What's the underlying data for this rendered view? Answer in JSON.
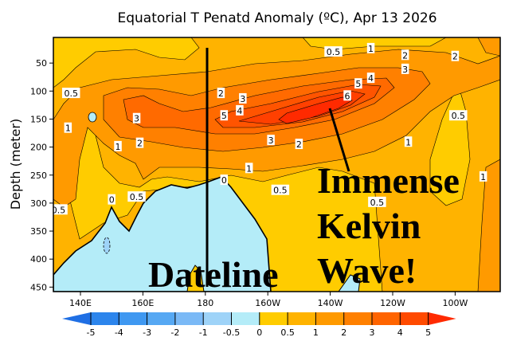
{
  "chart_data": {
    "type": "heatmap",
    "subtype": "filled-contour depth-longitude section",
    "title": "Equatorial T Penatd Anomaly (ºC), Apr 13 2026",
    "xlabel": "",
    "ylabel": "Depth (meter)",
    "xlim_deg_east": [
      130,
      280
    ],
    "ylim_depth": [
      460,
      5
    ],
    "x_ticks": [
      {
        "value": 140,
        "label": "140E"
      },
      {
        "value": 160,
        "label": "160E"
      },
      {
        "value": 180,
        "label": "180"
      },
      {
        "value": 200,
        "label": "160W"
      },
      {
        "value": 220,
        "label": "140W"
      },
      {
        "value": 240,
        "label": "120W"
      },
      {
        "value": 260,
        "label": "100W"
      }
    ],
    "y_ticks": [
      {
        "value": 50,
        "label": "50"
      },
      {
        "value": 100,
        "label": "100"
      },
      {
        "value": 150,
        "label": "150"
      },
      {
        "value": 200,
        "label": "200"
      },
      {
        "value": 250,
        "label": "250"
      },
      {
        "value": 300,
        "label": "300"
      },
      {
        "value": 350,
        "label": "350"
      },
      {
        "value": 400,
        "label": "400"
      },
      {
        "value": 450,
        "label": "450"
      }
    ],
    "colorbar": {
      "levels": [
        "-5",
        "-4",
        "-3",
        "-2",
        "-1",
        "-0.5",
        "0",
        "0.5",
        "1",
        "2",
        "3",
        "4",
        "5"
      ],
      "colors": [
        "#1f6fe4",
        "#2c85ec",
        "#3f98f1",
        "#56a8f3",
        "#7ab9f6",
        "#9ed3f8",
        "#b4ecf8",
        "#ffcc00",
        "#ffb300",
        "#ff9a00",
        "#ff8000",
        "#ff6400",
        "#ff4a00",
        "#ff2a00"
      ]
    },
    "contour_labels": [
      {
        "text": "0.5",
        "lon": 221,
        "depth": 30
      },
      {
        "text": "1",
        "lon": 233,
        "depth": 24
      },
      {
        "text": "2",
        "lon": 244,
        "depth": 36
      },
      {
        "text": "3",
        "lon": 244,
        "depth": 61
      },
      {
        "text": "2",
        "lon": 260,
        "depth": 38
      },
      {
        "text": "4",
        "lon": 233,
        "depth": 77
      },
      {
        "text": "5",
        "lon": 229,
        "depth": 87
      },
      {
        "text": "6",
        "lon": 227,
        "depth": 100
      },
      {
        "text": "2",
        "lon": 185,
        "depth": 104
      },
      {
        "text": "3",
        "lon": 192,
        "depth": 118
      },
      {
        "text": "4",
        "lon": 191,
        "depth": 135
      },
      {
        "text": "5",
        "lon": 186,
        "depth": 144
      },
      {
        "text": "0.5",
        "lon": 137,
        "depth": 104
      },
      {
        "text": "3",
        "lon": 158,
        "depth": 149
      },
      {
        "text": "1",
        "lon": 136,
        "depth": 166
      },
      {
        "text": "2",
        "lon": 159,
        "depth": 193
      },
      {
        "text": "1",
        "lon": 152,
        "depth": 199
      },
      {
        "text": "3",
        "lon": 201,
        "depth": 188
      },
      {
        "text": "2",
        "lon": 210,
        "depth": 195
      },
      {
        "text": "0.5",
        "lon": 261,
        "depth": 144
      },
      {
        "text": "1",
        "lon": 245,
        "depth": 191
      },
      {
        "text": "1",
        "lon": 194,
        "depth": 238
      },
      {
        "text": "0",
        "lon": 186,
        "depth": 259
      },
      {
        "text": "0",
        "lon": 150,
        "depth": 294
      },
      {
        "text": "0.5",
        "lon": 158,
        "depth": 289
      },
      {
        "text": "0.5",
        "lon": 204,
        "depth": 277
      },
      {
        "text": "0.5",
        "lon": 133,
        "depth": 312
      },
      {
        "text": "0.5",
        "lon": 235,
        "depth": 317
      },
      {
        "text": "1",
        "lon": 269,
        "depth": 253
      }
    ],
    "annotations": {
      "dateline": "Dateline",
      "wave_line1": "Immense",
      "wave_line2": "Kelvin",
      "wave_line3": "Wave!"
    },
    "grid": false
  }
}
